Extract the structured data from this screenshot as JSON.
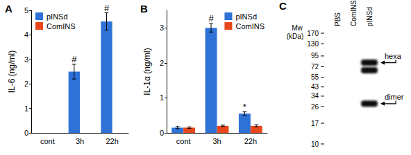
{
  "chart_data": [
    {
      "type": "bar",
      "title": "A",
      "y_label": "IL-6 (ng/ml)",
      "categories": [
        "cont",
        "3h",
        "22h"
      ],
      "series": [
        {
          "name": "pINSd",
          "color": "#2e72d8",
          "values": [
            0,
            2.5,
            4.55
          ],
          "errors": [
            0,
            0.3,
            0.35
          ]
        },
        {
          "name": "ComINS",
          "color": "#e8471e",
          "values": [
            0,
            0,
            0
          ],
          "errors": [
            0,
            0,
            0
          ]
        }
      ],
      "annotations": [
        {
          "text": "#",
          "category": "3h",
          "series": "pINSd"
        },
        {
          "text": "#",
          "category": "22h",
          "series": "pINSd"
        }
      ],
      "ylim": [
        0,
        5
      ],
      "yticks": [
        0,
        1,
        2,
        3,
        4,
        5
      ],
      "grid": false,
      "legend": "upper left"
    },
    {
      "type": "bar",
      "title": "B",
      "y_label": "IL-1α (ng/ml)",
      "categories": [
        "cont",
        "3h",
        "22h"
      ],
      "series": [
        {
          "name": "pINSd",
          "color": "#2e72d8",
          "values": [
            0.15,
            3.0,
            0.55
          ],
          "errors": [
            0.03,
            0.12,
            0.05
          ]
        },
        {
          "name": "ComINS",
          "color": "#e8471e",
          "values": [
            0.15,
            0.2,
            0.2
          ],
          "errors": [
            0.02,
            0.02,
            0.03
          ]
        }
      ],
      "annotations": [
        {
          "text": "#",
          "category": "3h",
          "series": "pINSd"
        },
        {
          "text": "*",
          "category": "22h",
          "series": "pINSd"
        }
      ],
      "ylim": [
        0,
        3.5
      ],
      "yticks": [
        0,
        1,
        2,
        3
      ],
      "grid": false,
      "legend": "upper right"
    }
  ],
  "blot": {
    "title": "C",
    "axis_label": [
      "Mw",
      "(kDa)"
    ],
    "markers": [
      170,
      130,
      95,
      72,
      55,
      43,
      34,
      26,
      17,
      10
    ],
    "lanes": [
      "PBS",
      "ComINS",
      "pINSd"
    ],
    "bands": [
      {
        "lane": "pINSd",
        "mw": 80
      },
      {
        "lane": "pINSd",
        "mw": 66
      },
      {
        "lane": "pINSd",
        "mw": 28
      }
    ],
    "annotations": [
      {
        "text": "hexa",
        "mw": 80
      },
      {
        "text": "dimer",
        "mw": 28
      }
    ]
  }
}
